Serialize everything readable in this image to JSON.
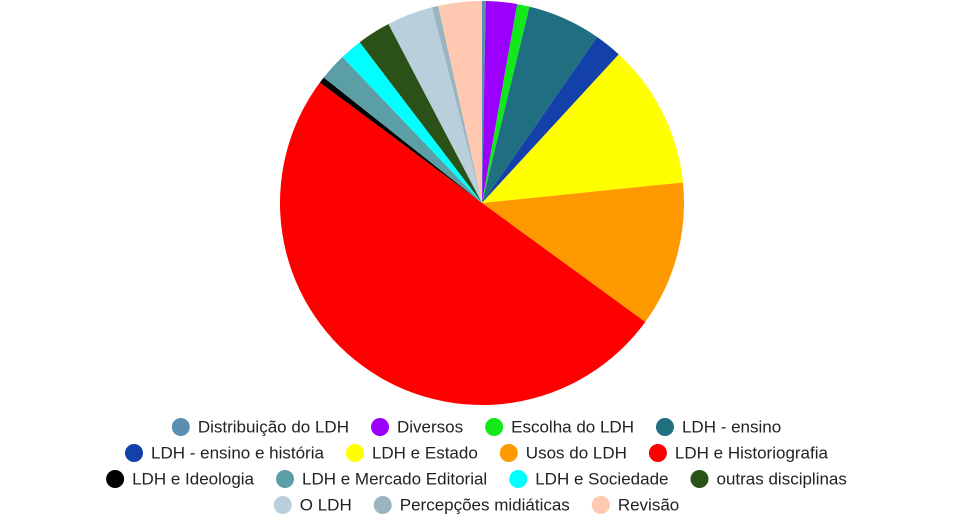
{
  "chart_data": {
    "type": "pie",
    "categories": [
      "Distribuição do LDH",
      "Diversos",
      "Escolha do LDH",
      "LDH - ensino",
      "LDH - ensino e história",
      "LDH e Estado",
      "Usos do LDH",
      "LDH e Historiografia",
      "LDH e Ideologia",
      "LDH e Mercado Editorial",
      "LDH e Sociedade",
      "outras disciplinas",
      "O LDH",
      "Percepções midiáticas",
      "Revisão"
    ],
    "values": [
      0.3,
      2.5,
      1,
      5.9,
      2.2,
      11.6,
      11.7,
      50.4,
      0.5,
      2.2,
      1.8,
      2.7,
      3.7,
      0.5,
      3.5
    ],
    "colors": [
      "#5b8fb0",
      "#9b00ff",
      "#13e81b",
      "#1f6f80",
      "#1440aa",
      "#ffff00",
      "#ff9900",
      "#ff0000",
      "#000000",
      "#5b9ea6",
      "#00ffff",
      "#2a5218",
      "#b9cfdc",
      "#9ab4c0",
      "#ffc8b0"
    ],
    "legend": "bottom"
  }
}
